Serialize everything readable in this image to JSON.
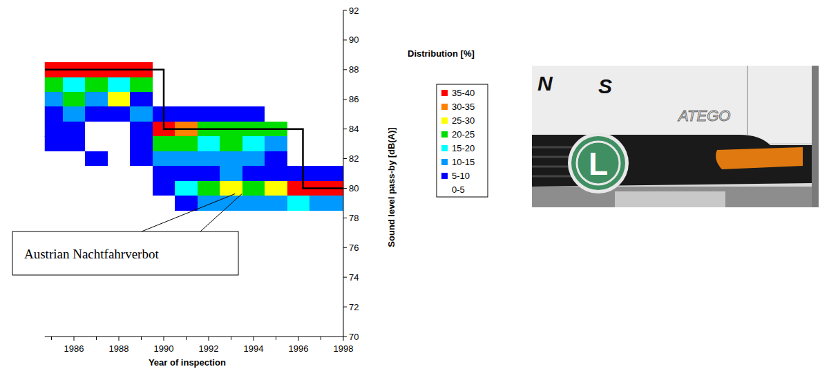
{
  "chart_data": {
    "type": "heatmap",
    "x_label": "Year of inspection",
    "y_label": "Sound level pass-by [dB(A)]",
    "xlim": [
      1984.7,
      1998
    ],
    "xticks": [
      1986,
      1988,
      1990,
      1992,
      1994,
      1996,
      1998
    ],
    "ylim": [
      70,
      92
    ],
    "yticks": [
      70,
      72,
      74,
      76,
      78,
      80,
      82,
      84,
      86,
      88,
      90,
      92
    ],
    "heatmap": {
      "x": [
        1985,
        1986,
        1987,
        1988,
        1989,
        1990,
        1991,
        1992,
        1993,
        1994,
        1995,
        1996,
        1997,
        1998
      ],
      "y": [
        88,
        87,
        86,
        85,
        84,
        83,
        82,
        81,
        80,
        79
      ],
      "cells": [
        [
          38,
          37,
          36,
          36,
          36,
          0,
          0,
          0,
          0,
          0,
          0,
          0,
          0,
          0
        ],
        [
          22,
          18,
          20,
          18,
          20,
          0,
          0,
          0,
          0,
          0,
          0,
          0,
          0,
          0
        ],
        [
          12,
          22,
          12,
          26,
          8,
          0,
          0,
          0,
          0,
          0,
          0,
          0,
          0,
          0
        ],
        [
          8,
          10,
          8,
          8,
          10,
          8,
          6,
          7,
          7,
          7,
          0,
          0,
          0,
          0
        ],
        [
          8,
          6,
          2,
          2,
          7,
          37,
          32,
          22,
          24,
          23,
          20,
          0,
          0,
          0
        ],
        [
          7,
          8,
          4,
          3,
          7,
          22,
          24,
          18,
          20,
          17,
          12,
          0,
          0,
          0
        ],
        [
          2,
          4,
          5,
          3,
          8,
          12,
          12,
          12,
          10,
          10,
          8,
          0,
          0,
          0
        ],
        [
          0,
          0,
          0,
          0,
          0,
          6,
          8,
          8,
          10,
          8,
          7,
          6,
          7,
          7
        ],
        [
          0,
          0,
          0,
          0,
          0,
          8,
          16,
          22,
          26,
          24,
          28,
          36,
          38,
          36
        ],
        [
          0,
          0,
          0,
          0,
          0,
          2,
          7,
          12,
          14,
          14,
          14,
          18,
          14,
          12
        ]
      ]
    },
    "color_bar": {
      "title": "Distribution [%]",
      "bins": [
        {
          "min": 35,
          "max": 40,
          "label": "35-40",
          "color": "#ff0000"
        },
        {
          "min": 30,
          "max": 35,
          "label": "30-35",
          "color": "#ff8000"
        },
        {
          "min": 25,
          "max": 30,
          "label": "25-30",
          "color": "#ffff00"
        },
        {
          "min": 20,
          "max": 25,
          "label": "20-25",
          "color": "#00dd00"
        },
        {
          "min": 15,
          "max": 20,
          "label": "15-20",
          "color": "#00ffff"
        },
        {
          "min": 10,
          "max": 15,
          "label": "10-15",
          "color": "#0099ff"
        },
        {
          "min": 5,
          "max": 10,
          "label": "5-10",
          "color": "#0000ff"
        },
        {
          "min": 0,
          "max": 5,
          "label": "0-5",
          "color": "#ffffff"
        }
      ]
    },
    "series": [
      {
        "type": "line",
        "color": "#000000",
        "line_style": "solid",
        "x": [
          1984.7,
          1990,
          1990,
          1996.2,
          1996.2,
          1998
        ],
        "values": [
          88,
          88,
          84,
          84,
          80,
          80
        ]
      }
    ],
    "annotations": [
      {
        "text": "Austrian Nachtfahrverbot",
        "x": 1993.3,
        "y": 80
      }
    ]
  },
  "photo": {
    "letters": [
      "N",
      "S"
    ],
    "brand": "ATEGO",
    "badge": "L"
  }
}
